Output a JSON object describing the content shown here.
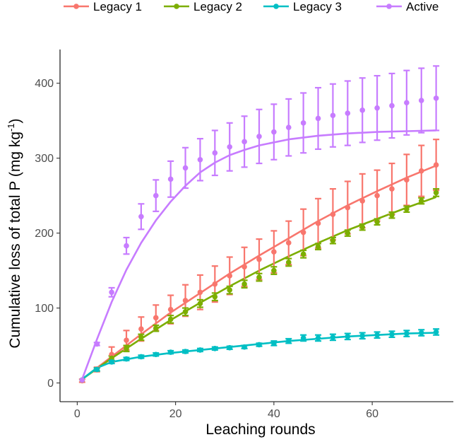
{
  "chart_data": {
    "type": "line",
    "xlabel": "Leaching rounds",
    "ylabel_main": "Cumulative loss of total P (mg kg",
    "ylabel_sup": "-1",
    "ylabel_end": ")",
    "xlim": [
      -3.5,
      76.5
    ],
    "ylim": [
      -25,
      445
    ],
    "xticks": [
      0,
      20,
      40,
      60
    ],
    "yticks": [
      0,
      100,
      200,
      300,
      400
    ],
    "legend_position": "top",
    "grid": false,
    "series": [
      {
        "name": "Legacy 1",
        "color": "#F8766D",
        "points": [
          {
            "x": 1,
            "y": 3,
            "e": 2
          },
          {
            "x": 4,
            "y": 18,
            "e": 3
          },
          {
            "x": 7,
            "y": 38,
            "e": 10
          },
          {
            "x": 10,
            "y": 57,
            "e": 13
          },
          {
            "x": 13,
            "y": 72,
            "e": 16
          },
          {
            "x": 16,
            "y": 87,
            "e": 17
          },
          {
            "x": 19,
            "y": 98,
            "e": 19
          },
          {
            "x": 22,
            "y": 110,
            "e": 21
          },
          {
            "x": 25,
            "y": 121,
            "e": 23
          },
          {
            "x": 28,
            "y": 132,
            "e": 24
          },
          {
            "x": 31,
            "y": 143,
            "e": 25
          },
          {
            "x": 34,
            "y": 155,
            "e": 26
          },
          {
            "x": 37,
            "y": 165,
            "e": 27
          },
          {
            "x": 40,
            "y": 175,
            "e": 28
          },
          {
            "x": 43,
            "y": 187,
            "e": 29
          },
          {
            "x": 46,
            "y": 201,
            "e": 31
          },
          {
            "x": 49,
            "y": 213,
            "e": 33
          },
          {
            "x": 52,
            "y": 225,
            "e": 34
          },
          {
            "x": 55,
            "y": 234,
            "e": 35
          },
          {
            "x": 58,
            "y": 243,
            "e": 36
          },
          {
            "x": 61,
            "y": 250,
            "e": 34
          },
          {
            "x": 64,
            "y": 259,
            "e": 34
          },
          {
            "x": 67,
            "y": 271,
            "e": 34
          },
          {
            "x": 70,
            "y": 283,
            "e": 34
          },
          {
            "x": 73,
            "y": 291,
            "e": 34
          }
        ],
        "fit": [
          {
            "x": 1,
            "y": 5
          },
          {
            "x": 7,
            "y": 35
          },
          {
            "x": 13,
            "y": 65
          },
          {
            "x": 19,
            "y": 94
          },
          {
            "x": 25,
            "y": 120
          },
          {
            "x": 31,
            "y": 146
          },
          {
            "x": 37,
            "y": 170
          },
          {
            "x": 43,
            "y": 193
          },
          {
            "x": 49,
            "y": 216
          },
          {
            "x": 55,
            "y": 237
          },
          {
            "x": 61,
            "y": 256
          },
          {
            "x": 67,
            "y": 274
          },
          {
            "x": 73,
            "y": 290
          }
        ]
      },
      {
        "name": "Legacy 2",
        "color": "#7CAE00",
        "points": [
          {
            "x": 1,
            "y": 4,
            "e": 1
          },
          {
            "x": 4,
            "y": 18,
            "e": 2
          },
          {
            "x": 7,
            "y": 33,
            "e": 3
          },
          {
            "x": 10,
            "y": 46,
            "e": 4
          },
          {
            "x": 13,
            "y": 61,
            "e": 4
          },
          {
            "x": 16,
            "y": 73,
            "e": 4
          },
          {
            "x": 19,
            "y": 85,
            "e": 5
          },
          {
            "x": 22,
            "y": 95,
            "e": 5
          },
          {
            "x": 25,
            "y": 106,
            "e": 5
          },
          {
            "x": 28,
            "y": 115,
            "e": 5
          },
          {
            "x": 31,
            "y": 124,
            "e": 5
          },
          {
            "x": 34,
            "y": 132,
            "e": 5
          },
          {
            "x": 37,
            "y": 141,
            "e": 5
          },
          {
            "x": 40,
            "y": 150,
            "e": 5
          },
          {
            "x": 43,
            "y": 161,
            "e": 5
          },
          {
            "x": 46,
            "y": 172,
            "e": 5
          },
          {
            "x": 49,
            "y": 182,
            "e": 4
          },
          {
            "x": 52,
            "y": 190,
            "e": 4
          },
          {
            "x": 55,
            "y": 200,
            "e": 4
          },
          {
            "x": 58,
            "y": 208,
            "e": 4
          },
          {
            "x": 61,
            "y": 215,
            "e": 4
          },
          {
            "x": 64,
            "y": 224,
            "e": 4
          },
          {
            "x": 67,
            "y": 232,
            "e": 4
          },
          {
            "x": 70,
            "y": 243,
            "e": 4
          },
          {
            "x": 73,
            "y": 254,
            "e": 5
          }
        ],
        "fit": [
          {
            "x": 1,
            "y": 5
          },
          {
            "x": 7,
            "y": 33
          },
          {
            "x": 13,
            "y": 59
          },
          {
            "x": 19,
            "y": 84
          },
          {
            "x": 25,
            "y": 107
          },
          {
            "x": 31,
            "y": 129
          },
          {
            "x": 37,
            "y": 150
          },
          {
            "x": 43,
            "y": 169
          },
          {
            "x": 49,
            "y": 187
          },
          {
            "x": 55,
            "y": 204
          },
          {
            "x": 61,
            "y": 219
          },
          {
            "x": 67,
            "y": 234
          },
          {
            "x": 73,
            "y": 248
          }
        ]
      },
      {
        "name": "Legacy 3",
        "color": "#00BFC4",
        "points": [
          {
            "x": 1,
            "y": 4,
            "e": 1
          },
          {
            "x": 4,
            "y": 18,
            "e": 2
          },
          {
            "x": 7,
            "y": 28,
            "e": 2
          },
          {
            "x": 10,
            "y": 32,
            "e": 2
          },
          {
            "x": 13,
            "y": 35,
            "e": 2
          },
          {
            "x": 16,
            "y": 38,
            "e": 2
          },
          {
            "x": 19,
            "y": 41,
            "e": 2
          },
          {
            "x": 22,
            "y": 42,
            "e": 2
          },
          {
            "x": 25,
            "y": 44,
            "e": 2
          },
          {
            "x": 28,
            "y": 46,
            "e": 2
          },
          {
            "x": 31,
            "y": 47,
            "e": 2
          },
          {
            "x": 34,
            "y": 48,
            "e": 2
          },
          {
            "x": 37,
            "y": 51,
            "e": 2
          },
          {
            "x": 40,
            "y": 53,
            "e": 3
          },
          {
            "x": 43,
            "y": 56,
            "e": 3
          },
          {
            "x": 46,
            "y": 60,
            "e": 4
          },
          {
            "x": 49,
            "y": 60,
            "e": 4
          },
          {
            "x": 52,
            "y": 61,
            "e": 4
          },
          {
            "x": 55,
            "y": 62,
            "e": 4
          },
          {
            "x": 58,
            "y": 63,
            "e": 4
          },
          {
            "x": 61,
            "y": 64,
            "e": 4
          },
          {
            "x": 64,
            "y": 65,
            "e": 4
          },
          {
            "x": 67,
            "y": 66,
            "e": 4
          },
          {
            "x": 70,
            "y": 67,
            "e": 4
          },
          {
            "x": 73,
            "y": 68,
            "e": 4
          }
        ],
        "fit": [
          {
            "x": 1,
            "y": 5
          },
          {
            "x": 4,
            "y": 20
          },
          {
            "x": 7,
            "y": 28
          },
          {
            "x": 13,
            "y": 35
          },
          {
            "x": 19,
            "y": 40
          },
          {
            "x": 25,
            "y": 44
          },
          {
            "x": 31,
            "y": 48
          },
          {
            "x": 37,
            "y": 52
          },
          {
            "x": 43,
            "y": 56
          },
          {
            "x": 49,
            "y": 59
          },
          {
            "x": 55,
            "y": 62
          },
          {
            "x": 61,
            "y": 64
          },
          {
            "x": 67,
            "y": 66
          },
          {
            "x": 73,
            "y": 67
          }
        ]
      },
      {
        "name": "Active",
        "color": "#C77CFF",
        "points": [
          {
            "x": 1,
            "y": 4,
            "e": 1
          },
          {
            "x": 4,
            "y": 52,
            "e": 2
          },
          {
            "x": 7,
            "y": 121,
            "e": 6
          },
          {
            "x": 10,
            "y": 183,
            "e": 11
          },
          {
            "x": 13,
            "y": 222,
            "e": 17
          },
          {
            "x": 16,
            "y": 250,
            "e": 21
          },
          {
            "x": 19,
            "y": 272,
            "e": 24
          },
          {
            "x": 22,
            "y": 287,
            "e": 27
          },
          {
            "x": 25,
            "y": 298,
            "e": 28
          },
          {
            "x": 28,
            "y": 307,
            "e": 30
          },
          {
            "x": 31,
            "y": 315,
            "e": 32
          },
          {
            "x": 34,
            "y": 322,
            "e": 34
          },
          {
            "x": 37,
            "y": 329,
            "e": 36
          },
          {
            "x": 40,
            "y": 335,
            "e": 37
          },
          {
            "x": 43,
            "y": 341,
            "e": 38
          },
          {
            "x": 46,
            "y": 347,
            "e": 40
          },
          {
            "x": 49,
            "y": 353,
            "e": 41
          },
          {
            "x": 52,
            "y": 357,
            "e": 42
          },
          {
            "x": 55,
            "y": 360,
            "e": 43
          },
          {
            "x": 58,
            "y": 364,
            "e": 43
          },
          {
            "x": 61,
            "y": 367,
            "e": 43
          },
          {
            "x": 64,
            "y": 370,
            "e": 43
          },
          {
            "x": 67,
            "y": 374,
            "e": 43
          },
          {
            "x": 70,
            "y": 377,
            "e": 43
          },
          {
            "x": 73,
            "y": 380,
            "e": 43
          }
        ],
        "fit": [
          {
            "x": 1,
            "y": 5
          },
          {
            "x": 4,
            "y": 58
          },
          {
            "x": 7,
            "y": 108
          },
          {
            "x": 10,
            "y": 151
          },
          {
            "x": 13,
            "y": 187
          },
          {
            "x": 16,
            "y": 217
          },
          {
            "x": 19,
            "y": 242
          },
          {
            "x": 22,
            "y": 263
          },
          {
            "x": 25,
            "y": 281
          },
          {
            "x": 28,
            "y": 294
          },
          {
            "x": 31,
            "y": 304
          },
          {
            "x": 34,
            "y": 311
          },
          {
            "x": 37,
            "y": 317
          },
          {
            "x": 43,
            "y": 325
          },
          {
            "x": 49,
            "y": 330
          },
          {
            "x": 55,
            "y": 333
          },
          {
            "x": 61,
            "y": 335
          },
          {
            "x": 67,
            "y": 336
          },
          {
            "x": 73,
            "y": 337
          }
        ]
      }
    ]
  }
}
